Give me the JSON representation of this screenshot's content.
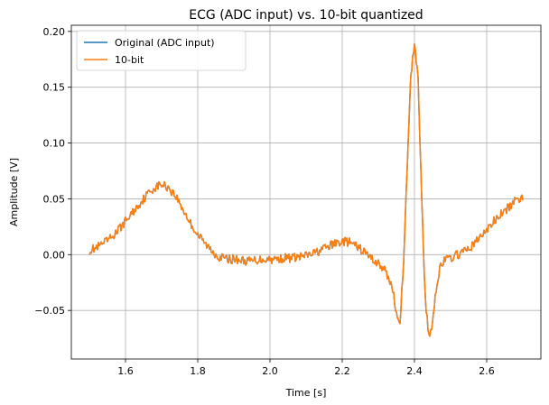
{
  "chart_data": {
    "type": "line",
    "title": "ECG (ADC input) vs. 10-bit quantized",
    "xlabel": "Time [s]",
    "ylabel": "Amplitude [V]",
    "xlim": [
      1.45,
      2.75
    ],
    "ylim": [
      -0.0935,
      0.2055
    ],
    "xticks": [
      1.6,
      1.8,
      2.0,
      2.2,
      2.4,
      2.6
    ],
    "xtick_labels": [
      "1.6",
      "1.8",
      "2.0",
      "2.2",
      "2.4",
      "2.6"
    ],
    "yticks": [
      -0.05,
      0.0,
      0.05,
      0.1,
      0.15,
      0.2
    ],
    "ytick_labels": [
      "−0.05",
      "0.00",
      "0.05",
      "0.10",
      "0.15",
      "0.20"
    ],
    "grid": true,
    "legend": "upper-left",
    "series": [
      {
        "name": "Original (ADC input)",
        "color": "#1f77b4",
        "x": [
          1.5,
          1.52,
          1.54,
          1.56,
          1.58,
          1.6,
          1.62,
          1.64,
          1.66,
          1.68,
          1.7,
          1.72,
          1.74,
          1.76,
          1.78,
          1.8,
          1.82,
          1.84,
          1.86,
          1.88,
          1.9,
          1.92,
          1.94,
          1.96,
          1.98,
          2.0,
          2.02,
          2.04,
          2.06,
          2.08,
          2.1,
          2.12,
          2.14,
          2.16,
          2.18,
          2.2,
          2.22,
          2.24,
          2.26,
          2.28,
          2.3,
          2.32,
          2.34,
          2.35,
          2.36,
          2.37,
          2.38,
          2.39,
          2.4,
          2.41,
          2.42,
          2.43,
          2.44,
          2.45,
          2.46,
          2.47,
          2.48,
          2.5,
          2.52,
          2.54,
          2.56,
          2.58,
          2.6,
          2.62,
          2.64,
          2.66,
          2.68,
          2.7
        ],
        "y": [
          0.004,
          0.006,
          0.01,
          0.015,
          0.022,
          0.03,
          0.038,
          0.046,
          0.054,
          0.06,
          0.063,
          0.06,
          0.052,
          0.04,
          0.028,
          0.018,
          0.01,
          0.003,
          -0.002,
          -0.004,
          -0.004,
          -0.005,
          -0.006,
          -0.005,
          -0.004,
          -0.004,
          -0.004,
          -0.003,
          -0.003,
          -0.002,
          -0.001,
          0.001,
          0.004,
          0.007,
          0.01,
          0.012,
          0.011,
          0.007,
          0.003,
          -0.003,
          -0.008,
          -0.015,
          -0.03,
          -0.055,
          -0.058,
          -0.01,
          0.08,
          0.16,
          0.19,
          0.16,
          0.05,
          -0.04,
          -0.075,
          -0.06,
          -0.03,
          -0.012,
          -0.006,
          -0.003,
          0.0,
          0.003,
          0.008,
          0.015,
          0.022,
          0.03,
          0.036,
          0.042,
          0.048,
          0.052
        ]
      },
      {
        "name": "10-bit",
        "color": "#ff7f0e",
        "x": [
          1.5,
          1.52,
          1.54,
          1.56,
          1.58,
          1.6,
          1.62,
          1.64,
          1.66,
          1.68,
          1.7,
          1.72,
          1.74,
          1.76,
          1.78,
          1.8,
          1.82,
          1.84,
          1.86,
          1.88,
          1.9,
          1.92,
          1.94,
          1.96,
          1.98,
          2.0,
          2.02,
          2.04,
          2.06,
          2.08,
          2.1,
          2.12,
          2.14,
          2.16,
          2.18,
          2.2,
          2.22,
          2.24,
          2.26,
          2.28,
          2.3,
          2.32,
          2.34,
          2.35,
          2.36,
          2.37,
          2.38,
          2.39,
          2.4,
          2.41,
          2.42,
          2.43,
          2.44,
          2.45,
          2.46,
          2.47,
          2.48,
          2.5,
          2.52,
          2.54,
          2.56,
          2.58,
          2.6,
          2.62,
          2.64,
          2.66,
          2.68,
          2.7
        ],
        "y": [
          0.004,
          0.006,
          0.01,
          0.015,
          0.022,
          0.03,
          0.038,
          0.046,
          0.054,
          0.06,
          0.063,
          0.06,
          0.052,
          0.04,
          0.028,
          0.018,
          0.01,
          0.003,
          -0.002,
          -0.004,
          -0.004,
          -0.005,
          -0.006,
          -0.005,
          -0.004,
          -0.004,
          -0.004,
          -0.003,
          -0.003,
          -0.002,
          -0.001,
          0.001,
          0.004,
          0.007,
          0.01,
          0.012,
          0.011,
          0.007,
          0.003,
          -0.003,
          -0.008,
          -0.015,
          -0.03,
          -0.055,
          -0.058,
          -0.01,
          0.08,
          0.16,
          0.19,
          0.16,
          0.05,
          -0.04,
          -0.075,
          -0.06,
          -0.03,
          -0.012,
          -0.006,
          -0.003,
          0.0,
          0.003,
          0.008,
          0.015,
          0.022,
          0.03,
          0.036,
          0.042,
          0.048,
          0.052
        ]
      }
    ]
  }
}
